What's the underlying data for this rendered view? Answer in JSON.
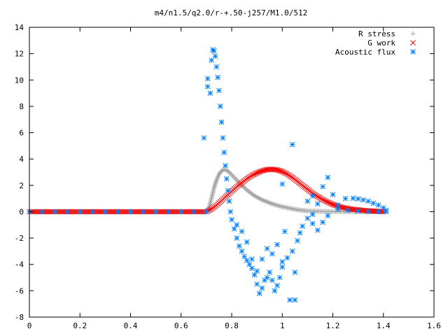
{
  "chart_data": {
    "type": "scatter",
    "title": "m4/n1.5/q2.0/r-+.50-j257/M1.0/512",
    "xlabel": "",
    "ylabel": "",
    "xlim": [
      0,
      1.6
    ],
    "ylim": [
      -8,
      14
    ],
    "x_ticks": [
      0,
      0.2,
      0.4,
      0.6,
      0.8,
      1,
      1.2,
      1.4,
      1.6
    ],
    "x_tick_labels": [
      "0",
      "0.2",
      "0.4",
      "0.6",
      "0.8",
      "1",
      "1.2",
      "1.4",
      "1.6"
    ],
    "y_ticks": [
      -8,
      -6,
      -4,
      -2,
      0,
      2,
      4,
      6,
      8,
      10,
      12,
      14
    ],
    "y_tick_labels": [
      "-8",
      "-6",
      "-4",
      "-2",
      "0",
      "2",
      "4",
      "6",
      "8",
      "10",
      "12",
      "14"
    ],
    "grid": false,
    "legend_position": "top-right",
    "series": [
      {
        "name": "R stress",
        "marker": "plus",
        "color": "#a0a0a0",
        "points": [
          [
            0.0,
            0
          ],
          [
            0.1,
            0
          ],
          [
            0.2,
            0
          ],
          [
            0.3,
            0
          ],
          [
            0.4,
            0
          ],
          [
            0.5,
            0
          ],
          [
            0.6,
            0
          ],
          [
            0.7,
            0
          ],
          [
            0.71,
            0.3
          ],
          [
            0.72,
            1.0
          ],
          [
            0.73,
            1.8
          ],
          [
            0.74,
            2.4
          ],
          [
            0.75,
            2.85
          ],
          [
            0.76,
            3.1
          ],
          [
            0.77,
            3.2
          ],
          [
            0.78,
            3.15
          ],
          [
            0.79,
            3.0
          ],
          [
            0.8,
            2.8
          ],
          [
            0.82,
            2.4
          ],
          [
            0.84,
            2.0
          ],
          [
            0.86,
            1.65
          ],
          [
            0.88,
            1.35
          ],
          [
            0.9,
            1.1
          ],
          [
            0.92,
            0.9
          ],
          [
            0.94,
            0.75
          ],
          [
            0.96,
            0.6
          ],
          [
            0.98,
            0.48
          ],
          [
            1.0,
            0.38
          ],
          [
            1.02,
            0.3
          ],
          [
            1.04,
            0.22
          ],
          [
            1.06,
            0.15
          ],
          [
            1.08,
            0.1
          ],
          [
            1.1,
            0.06
          ],
          [
            1.15,
            0.03
          ],
          [
            1.2,
            0.01
          ],
          [
            1.3,
            0
          ],
          [
            1.4,
            0
          ]
        ]
      },
      {
        "name": "G work",
        "marker": "cross",
        "color": "#ff0000",
        "points": [
          [
            0.0,
            0
          ],
          [
            0.1,
            0
          ],
          [
            0.2,
            0
          ],
          [
            0.3,
            0
          ],
          [
            0.4,
            0
          ],
          [
            0.5,
            0
          ],
          [
            0.6,
            0
          ],
          [
            0.7,
            0
          ],
          [
            0.72,
            0.2
          ],
          [
            0.74,
            0.5
          ],
          [
            0.76,
            0.85
          ],
          [
            0.78,
            1.2
          ],
          [
            0.8,
            1.55
          ],
          [
            0.82,
            1.9
          ],
          [
            0.84,
            2.2
          ],
          [
            0.86,
            2.5
          ],
          [
            0.88,
            2.75
          ],
          [
            0.9,
            2.95
          ],
          [
            0.92,
            3.1
          ],
          [
            0.94,
            3.2
          ],
          [
            0.96,
            3.22
          ],
          [
            0.98,
            3.18
          ],
          [
            1.0,
            3.05
          ],
          [
            1.02,
            2.85
          ],
          [
            1.04,
            2.6
          ],
          [
            1.06,
            2.3
          ],
          [
            1.08,
            2.0
          ],
          [
            1.1,
            1.7
          ],
          [
            1.12,
            1.4
          ],
          [
            1.14,
            1.15
          ],
          [
            1.16,
            0.92
          ],
          [
            1.18,
            0.72
          ],
          [
            1.2,
            0.55
          ],
          [
            1.22,
            0.42
          ],
          [
            1.24,
            0.32
          ],
          [
            1.26,
            0.24
          ],
          [
            1.28,
            0.18
          ],
          [
            1.3,
            0.14
          ],
          [
            1.32,
            0.1
          ],
          [
            1.34,
            0.07
          ],
          [
            1.36,
            0.05
          ],
          [
            1.38,
            0.03
          ],
          [
            1.4,
            0.01
          ]
        ]
      },
      {
        "name": "Acoustic flux",
        "marker": "star",
        "color": "#0080ff",
        "points": [
          [
            0.0,
            0
          ],
          [
            0.05,
            0
          ],
          [
            0.1,
            0
          ],
          [
            0.15,
            0
          ],
          [
            0.2,
            0
          ],
          [
            0.25,
            0
          ],
          [
            0.3,
            0
          ],
          [
            0.35,
            0
          ],
          [
            0.4,
            0
          ],
          [
            0.45,
            0
          ],
          [
            0.5,
            0
          ],
          [
            0.55,
            0
          ],
          [
            0.6,
            0
          ],
          [
            0.65,
            0
          ],
          [
            0.7,
            0
          ],
          [
            0.69,
            5.6
          ],
          [
            0.705,
            9.5
          ],
          [
            0.705,
            10.1
          ],
          [
            0.715,
            9.0
          ],
          [
            0.72,
            11.5
          ],
          [
            0.725,
            12.3
          ],
          [
            0.73,
            12.2
          ],
          [
            0.735,
            11.8
          ],
          [
            0.74,
            11.0
          ],
          [
            0.745,
            10.2
          ],
          [
            0.75,
            9.2
          ],
          [
            0.755,
            8.0
          ],
          [
            0.76,
            6.8
          ],
          [
            0.765,
            5.6
          ],
          [
            0.77,
            4.5
          ],
          [
            0.775,
            3.5
          ],
          [
            0.78,
            2.5
          ],
          [
            0.785,
            1.6
          ],
          [
            0.79,
            0.8
          ],
          [
            0.795,
            0
          ],
          [
            0.8,
            -0.6
          ],
          [
            0.81,
            -1.3
          ],
          [
            0.82,
            -2.0
          ],
          [
            0.83,
            -2.6
          ],
          [
            0.84,
            -3.0
          ],
          [
            0.85,
            -3.4
          ],
          [
            0.86,
            -3.7
          ],
          [
            0.87,
            -4.0
          ],
          [
            0.88,
            -4.3
          ],
          [
            0.89,
            -4.8
          ],
          [
            0.9,
            -5.5
          ],
          [
            0.91,
            -6.2
          ],
          [
            0.92,
            -5.8
          ],
          [
            0.93,
            -5.2
          ],
          [
            0.94,
            -5.0
          ],
          [
            0.95,
            -4.6
          ],
          [
            0.96,
            -5.2
          ],
          [
            0.97,
            -6.0
          ],
          [
            0.98,
            -5.6
          ],
          [
            0.99,
            -5.0
          ],
          [
            1.0,
            -4.2
          ],
          [
            1.02,
            -3.5
          ],
          [
            1.04,
            -3.0
          ],
          [
            1.05,
            -4.6
          ],
          [
            1.06,
            -2.2
          ],
          [
            1.07,
            -1.6
          ],
          [
            1.08,
            -1.1
          ],
          [
            1.1,
            -0.5
          ],
          [
            1.12,
            -0.2
          ],
          [
            0.92,
            -3.6
          ],
          [
            0.94,
            -2.8
          ],
          [
            0.96,
            -3.2
          ],
          [
            0.98,
            -2.5
          ],
          [
            1.0,
            -3.8
          ],
          [
            1.01,
            -1.5
          ],
          [
            1.0,
            2.1
          ],
          [
            1.04,
            5.1
          ],
          [
            1.03,
            -6.7
          ],
          [
            1.05,
            -6.7
          ],
          [
            1.1,
            0.8
          ],
          [
            1.12,
            1.2
          ],
          [
            1.14,
            0.6
          ],
          [
            1.16,
            1.9
          ],
          [
            1.18,
            2.6
          ],
          [
            1.2,
            1.3
          ],
          [
            1.22,
            0.5
          ],
          [
            1.16,
            -0.8
          ],
          [
            1.14,
            -1.4
          ],
          [
            1.12,
            -0.9
          ],
          [
            1.18,
            -0.3
          ],
          [
            0.88,
            -3.6
          ],
          [
            0.9,
            -4.5
          ],
          [
            0.84,
            -1.5
          ],
          [
            0.86,
            -2.3
          ],
          [
            0.82,
            -1.0
          ],
          [
            1.25,
            1.0
          ],
          [
            1.28,
            1.02
          ],
          [
            1.3,
            0.98
          ],
          [
            1.32,
            0.9
          ],
          [
            1.34,
            0.8
          ],
          [
            1.36,
            0.65
          ],
          [
            1.38,
            0.5
          ],
          [
            1.4,
            0.3
          ],
          [
            1.41,
            0.1
          ],
          [
            1.22,
            0.2
          ],
          [
            1.26,
            0.1
          ],
          [
            1.3,
            0.05
          ],
          [
            1.34,
            0.02
          ],
          [
            1.38,
            0.01
          ],
          [
            1.41,
            0
          ]
        ]
      }
    ]
  }
}
